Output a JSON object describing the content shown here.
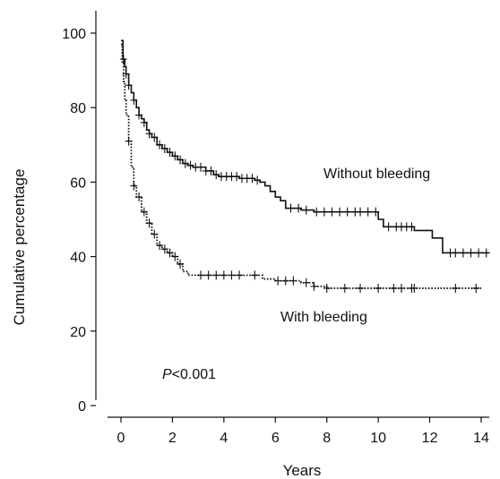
{
  "chart_data": {
    "type": "line",
    "subtype": "kaplan-meier",
    "title": "",
    "xlabel": "Years",
    "ylabel": "Cumulative percentage",
    "xlim": [
      0,
      14.5
    ],
    "ylim": [
      0,
      100
    ],
    "x_ticks": [
      0,
      2,
      4,
      6,
      8,
      10,
      12,
      14
    ],
    "y_ticks": [
      0,
      20,
      40,
      60,
      80,
      100
    ],
    "grid": false,
    "annotations": [
      {
        "text_italic": "P",
        "text": "<0.001"
      }
    ],
    "series": [
      {
        "name": "Without bleeding",
        "style": "solid",
        "color": "#111111",
        "x": [
          0,
          0.08,
          0.15,
          0.2,
          0.3,
          0.4,
          0.5,
          0.6,
          0.7,
          0.8,
          0.9,
          1.0,
          1.1,
          1.2,
          1.4,
          1.6,
          1.8,
          2.0,
          2.2,
          2.4,
          2.6,
          2.8,
          3.0,
          3.3,
          3.6,
          3.8,
          4.2,
          4.6,
          5.0,
          5.2,
          5.4,
          5.6,
          5.8,
          6.0,
          6.2,
          6.4,
          6.8,
          7.0,
          7.5,
          9.5,
          10.0,
          10.2,
          10.5,
          11.0,
          11.4,
          11.8,
          12.1,
          12.5,
          14.3
        ],
        "y": [
          98,
          93,
          91,
          89,
          86,
          84,
          82,
          80,
          78,
          77,
          76,
          74,
          73,
          72,
          70,
          69,
          68,
          67,
          66,
          65,
          64.5,
          64,
          64,
          63,
          62,
          61.5,
          61.5,
          61,
          61,
          60.5,
          60,
          59,
          57.5,
          56,
          55,
          53,
          53,
          52.5,
          52,
          52,
          50,
          48,
          48,
          48,
          47,
          47,
          45,
          41,
          41
        ]
      },
      {
        "name": "With bleeding",
        "style": "dotted",
        "color": "#111111",
        "x": [
          0,
          0.05,
          0.1,
          0.15,
          0.2,
          0.3,
          0.4,
          0.5,
          0.6,
          0.8,
          1.0,
          1.2,
          1.4,
          1.6,
          1.8,
          2.0,
          2.2,
          2.4,
          2.6,
          3.0,
          4.0,
          5.0,
          5.5,
          6.0,
          7.0,
          7.5,
          8.0,
          10.0,
          12.0,
          14.0
        ],
        "y": [
          97,
          92,
          87,
          82,
          78,
          71,
          64,
          59,
          56,
          52,
          49,
          46,
          43,
          42,
          41,
          40,
          38,
          36,
          35,
          35,
          35,
          35,
          34,
          33.5,
          33,
          32,
          31.5,
          31.5,
          31.5,
          31.5
        ]
      }
    ],
    "censor_marks": [
      [
        0.1,
        0.2,
        0.3,
        0.5,
        0.7,
        0.9,
        1.1,
        1.3,
        1.5,
        1.7,
        1.9,
        2.1,
        2.3,
        2.5,
        2.7,
        2.9,
        3.1,
        3.3,
        3.5,
        3.7,
        3.9,
        4.1,
        4.3,
        4.5,
        4.7,
        4.9,
        5.1,
        5.3,
        6.6,
        6.9,
        7.2,
        7.6,
        7.9,
        8.2,
        8.5,
        8.8,
        9.1,
        9.3,
        9.6,
        9.9,
        10.4,
        10.7,
        10.9,
        11.1,
        11.3,
        12.8,
        13.0,
        13.3,
        13.6,
        13.9,
        14.2
      ],
      [
        0.3,
        0.5,
        0.7,
        0.9,
        1.1,
        1.3,
        1.5,
        1.7,
        1.9,
        2.1,
        2.3,
        3.1,
        3.4,
        3.7,
        4.0,
        4.3,
        4.6,
        5.2,
        6.1,
        6.4,
        6.7,
        7.2,
        7.5,
        8.0,
        8.7,
        9.3,
        10.0,
        10.6,
        10.9,
        11.3,
        11.4,
        13.0,
        13.8
      ]
    ],
    "labels": {
      "without": "Without bleeding",
      "with": "With bleeding"
    }
  }
}
